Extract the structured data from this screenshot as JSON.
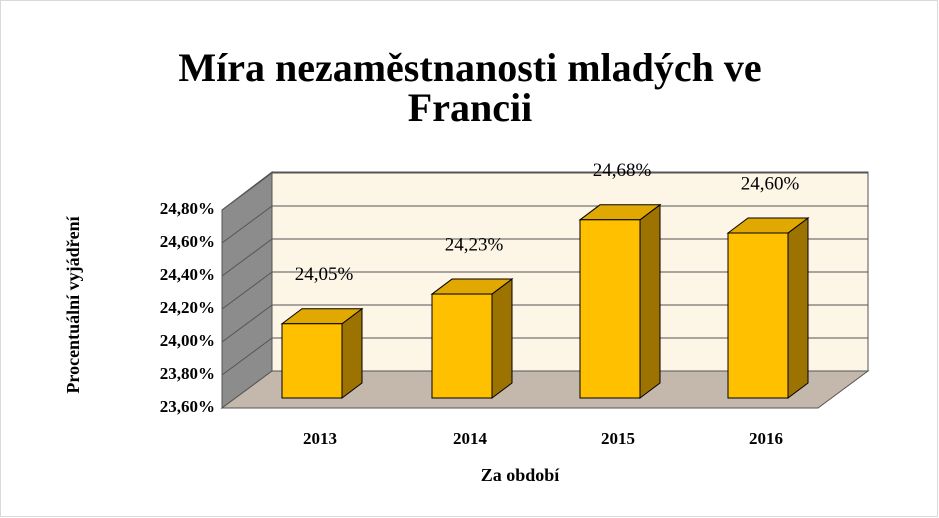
{
  "chart_data": {
    "type": "bar3d",
    "title": "Míra nezaměstnanosti mladých ve Francii",
    "categories": [
      "2013",
      "2014",
      "2015",
      "2016"
    ],
    "values": [
      24.05,
      24.23,
      24.68,
      24.6
    ],
    "value_labels": [
      "24,05%",
      "24,23%",
      "24,68%",
      "24,60%"
    ],
    "color": "#FFC000",
    "xlabel": "Za období",
    "ylabel": "Procentuální vyjádření",
    "ylim": [
      23.6,
      24.8
    ],
    "yticks": [
      {
        "value": 23.6,
        "label": "23,60%"
      },
      {
        "value": 23.8,
        "label": "23,80%"
      },
      {
        "value": 24.0,
        "label": "24,00%"
      },
      {
        "value": 24.2,
        "label": "24,20%"
      },
      {
        "value": 24.4,
        "label": "24,40%"
      },
      {
        "value": 24.6,
        "label": "24,60%"
      },
      {
        "value": 24.8,
        "label": "24,80%"
      }
    ],
    "grid": true
  }
}
